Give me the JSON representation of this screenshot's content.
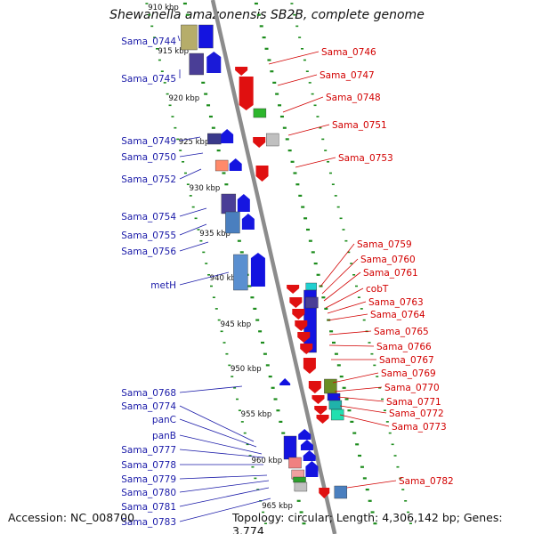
{
  "title": "Shewanella amazonensis SB2B, complete genome",
  "footer": {
    "accession": "Accession: NC_008700",
    "summary": "Topology: circular; Length: 4,306,142 bp; Genes: 3,774"
  },
  "colors": {
    "left_labels": "#1a1aa8",
    "right_labels": "#d20000",
    "backbone": "#8c8c8c",
    "tick": "#1c8c1c"
  },
  "kbp_marks": [
    "910 kbp",
    "915 kbp",
    "920 kbp",
    "925 kbp",
    "930 kbp",
    "935 kbp",
    "940 kbp",
    "945 kbp",
    "950 kbp",
    "955 kbp",
    "960 kbp",
    "965 kbp"
  ],
  "left_labels": [
    "Sama_0744",
    "Sama_0745",
    "Sama_0749",
    "Sama_0750",
    "Sama_0752",
    "Sama_0754",
    "Sama_0755",
    "Sama_0756",
    "metH",
    "Sama_0768",
    "Sama_0774",
    "panC",
    "panB",
    "Sama_0777",
    "Sama_0778",
    "Sama_0779",
    "Sama_0780",
    "Sama_0781",
    "Sama_0783"
  ],
  "right_labels": [
    "Sama_0746",
    "Sama_0747",
    "Sama_0748",
    "Sama_0751",
    "Sama_0753",
    "Sama_0759",
    "Sama_0760",
    "Sama_0761",
    "cobT",
    "Sama_0763",
    "Sama_0764",
    "Sama_0765",
    "Sama_0766",
    "Sama_0767",
    "Sama_0769",
    "Sama_0770",
    "Sama_0771",
    "Sama_0772",
    "Sama_0773",
    "Sama_0782"
  ]
}
